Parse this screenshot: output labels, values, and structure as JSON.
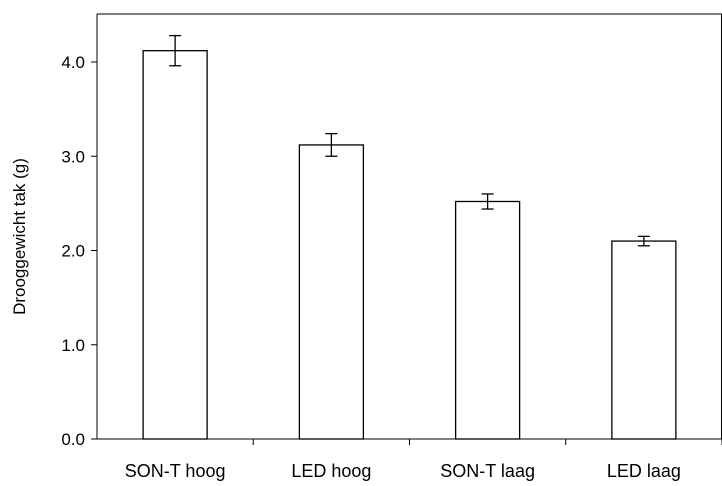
{
  "chart_data": {
    "type": "bar",
    "title": "",
    "xlabel": "",
    "ylabel": "Drooggewicht tak (g)",
    "categories": [
      "SON-T hoog",
      "LED hoog",
      "SON-T laag",
      "LED laag"
    ],
    "values": [
      4.12,
      3.12,
      2.52,
      2.1
    ],
    "errors": [
      0.16,
      0.12,
      0.08,
      0.05
    ],
    "ylim": [
      0,
      4.0
    ],
    "yticks": [
      0.0,
      1.0,
      2.0,
      3.0,
      4.0
    ],
    "ytick_labels": [
      "0.0",
      "1.0",
      "2.0",
      "3.0",
      "4.0"
    ],
    "grid": false,
    "bar_fill": "#ffffff",
    "bar_stroke": "#000000",
    "axis_color": "#000000"
  }
}
